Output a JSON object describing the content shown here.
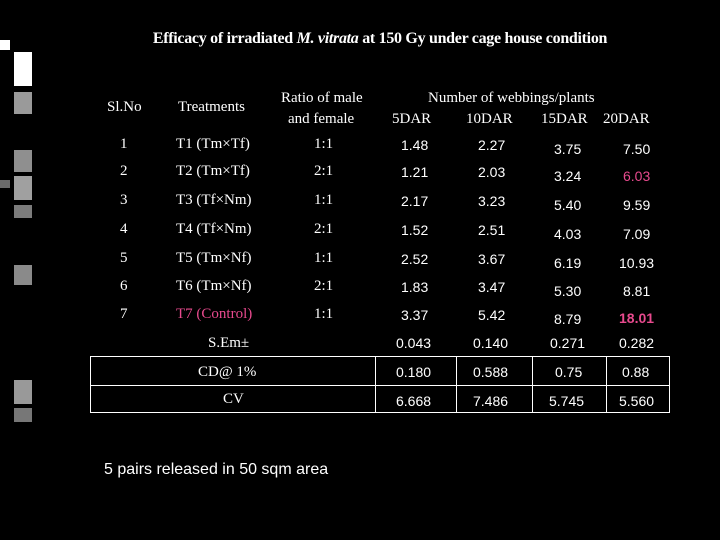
{
  "title": {
    "prefix": "Efficacy of irradiated ",
    "species": "M. vitrata",
    "suffix": " at 150 Gy under cage house condition"
  },
  "headers": {
    "sl_no": "Sl.No",
    "treatments": "Treatments",
    "ratio_line1": "Ratio of male",
    "ratio_line2": "and female",
    "webbings": "Number of webbings/plants",
    "dar": [
      "5DAR",
      "10DAR",
      "15DAR",
      "20DAR"
    ]
  },
  "rows": [
    {
      "sl": "1",
      "treatment": "T1 (Tm×Tf)",
      "ratio": "1:1",
      "d5": "1.48",
      "d10": "2.27",
      "d15": "3.75",
      "d20": "7.50"
    },
    {
      "sl": "2",
      "treatment": "T2 (Tm×Tf)",
      "ratio": "2:1",
      "d5": "1.21",
      "d10": "2.03",
      "d15": "3.24",
      "d20": "6.03"
    },
    {
      "sl": "3",
      "treatment": "T3 (Tf×Nm)",
      "ratio": "1:1",
      "d5": "2.17",
      "d10": "3.23",
      "d15": "5.40",
      "d20": "9.59"
    },
    {
      "sl": "4",
      "treatment": "T4 (Tf×Nm)",
      "ratio": "2:1",
      "d5": "1.52",
      "d10": "2.51",
      "d15": "4.03",
      "d20": "7.09"
    },
    {
      "sl": "5",
      "treatment": "T5 (Tm×Nf)",
      "ratio": "1:1",
      "d5": "2.52",
      "d10": "3.67",
      "d15": "6.19",
      "d20": "10.93"
    },
    {
      "sl": "6",
      "treatment": "T6 (Tm×Nf)",
      "ratio": "2:1",
      "d5": "1.83",
      "d10": "3.47",
      "d15": "5.30",
      "d20": "8.81"
    },
    {
      "sl": "7",
      "treatment": "T7 (Control)",
      "ratio": "1:1",
      "d5": "3.37",
      "d10": "5.42",
      "d15": "8.79",
      "d20": "18.01"
    }
  ],
  "stats": [
    {
      "label": "S.Em±",
      "d5": "0.043",
      "d10": "0.140",
      "d15": "0.271",
      "d20": "0.282"
    },
    {
      "label": "CD@ 1%",
      "d5": "0.180",
      "d10": "0.588",
      "d15": "0.75",
      "d20": "0.88"
    },
    {
      "label": "CV",
      "d5": "6.668",
      "d10": "7.486",
      "d15": "5.745",
      "d20": "5.560"
    }
  ],
  "note": "5 pairs released in 50 sqm area",
  "colors": {
    "background": "#000000",
    "text": "#ffffff",
    "highlight": "#e84a8e",
    "decor": "#9a9a9a"
  }
}
